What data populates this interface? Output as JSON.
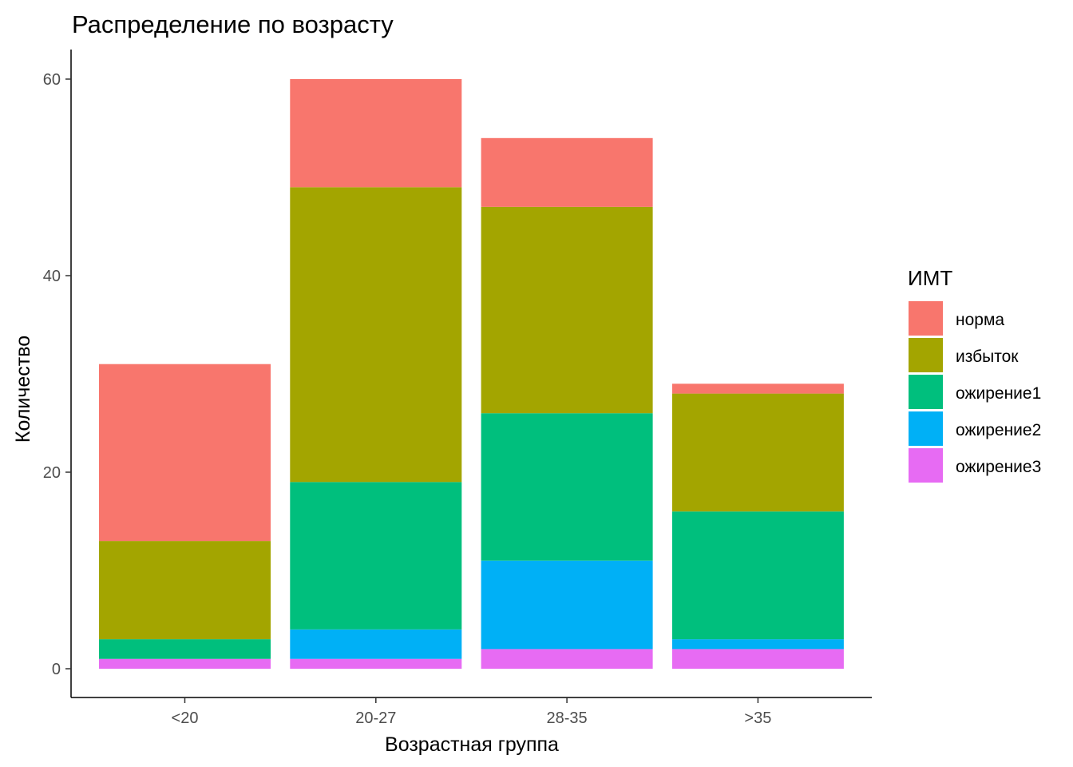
{
  "chart_data": {
    "type": "bar",
    "stacked": true,
    "title": "Распределение по возрасту",
    "xlabel": "Возрастная группа",
    "ylabel": "Количество",
    "categories": [
      "<20",
      "20-27",
      "28-35",
      ">35"
    ],
    "ylim": [
      0,
      62
    ],
    "yticks": [
      0,
      20,
      40,
      60
    ],
    "grid": false,
    "legend": {
      "title": "ИМТ",
      "position": "right"
    },
    "series": [
      {
        "name": "норма",
        "color": "#F8766D",
        "values": [
          18,
          11,
          7,
          1
        ]
      },
      {
        "name": "избыток",
        "color": "#A3A500",
        "values": [
          10,
          30,
          21,
          12
        ]
      },
      {
        "name": "ожирение1",
        "color": "#00BF7D",
        "values": [
          2,
          15,
          15,
          13
        ]
      },
      {
        "name": "ожирение2",
        "color": "#00B0F6",
        "values": [
          0,
          3,
          9,
          1
        ]
      },
      {
        "name": "ожирение3",
        "color": "#E76BF3",
        "values": [
          1,
          1,
          2,
          2
        ]
      }
    ]
  }
}
